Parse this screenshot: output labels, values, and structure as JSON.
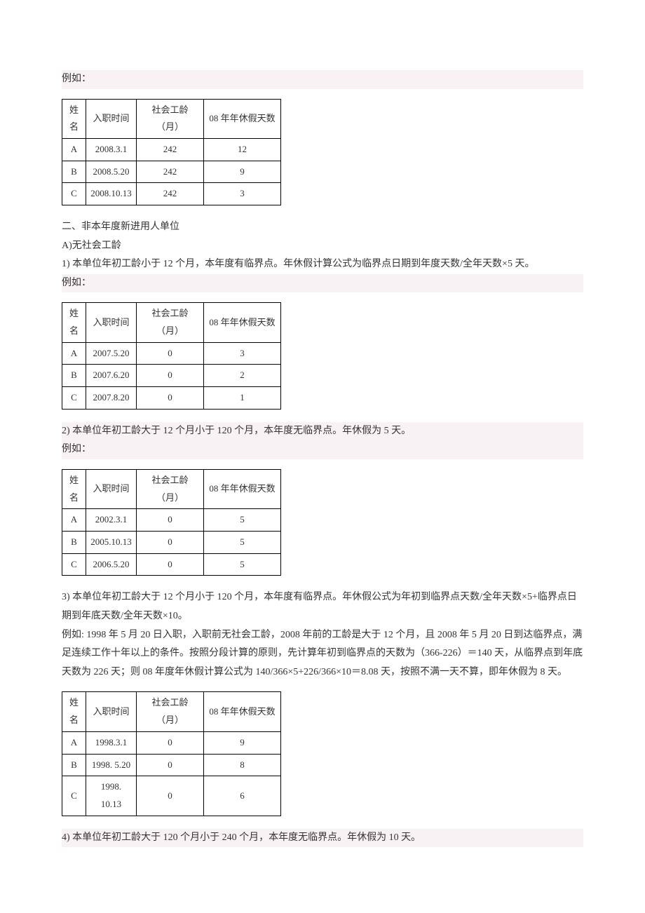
{
  "headers": [
    "姓名",
    "入职时间",
    "社会工龄（月）",
    "08 年年休假天数"
  ],
  "p_eg": "例如：",
  "table1": {
    "rows": [
      [
        "A",
        "2008.3.1",
        "242",
        "12"
      ],
      [
        "B",
        "2008.5.20",
        "242",
        "9"
      ],
      [
        "C",
        "2008.10.13",
        "242",
        "3"
      ]
    ]
  },
  "sec2": {
    "title": "二、非本年度新进用人单位",
    "subA": "A)无社会工龄",
    "p1": "1)  本单位年初工龄小于 12 个月，本年度有临界点。年休假计算公式为临界点日期到年度天数/全年天数×5 天。"
  },
  "table2": {
    "rows": [
      [
        "A",
        "2007.5.20",
        "0",
        "3"
      ],
      [
        "B",
        "2007.6.20",
        "0",
        "2"
      ],
      [
        "C",
        "2007.8.20",
        "0",
        "1"
      ]
    ]
  },
  "p2": "2)  本单位年初工龄大于 12 个月小于 120 个月，本年度无临界点。年休假为 5 天。",
  "table3": {
    "rows": [
      [
        "A",
        "2002.3.1",
        "0",
        "5"
      ],
      [
        "B",
        "2005.10.13",
        "0",
        "5"
      ],
      [
        "C",
        "2006.5.20",
        "0",
        "5"
      ]
    ]
  },
  "p3a": "3)  本单位年初工龄大于 12 个月小于 120 个月，本年度有临界点。年休假公式为年初到临界点天数/全年天数×5+临界点日期到年底天数/全年天数×10。",
  "p3b": "例如: 1998 年 5 月 20 日入职，入职前无社会工龄，2008 年前的工龄是大于 12 个月，且 2008 年 5 月 20 日到达临界点，满足连续工作十年以上的条件。按照分段计算的原则，先计算年初到临界点的天数为（366-226）＝140 天，从临界点到年底天数为 226 天；则 08 年度年休假计算公式为 140/366×5+226/366×10＝8.08 天，按照不满一天不算，即年休假为 8 天。",
  "table4": {
    "rows": [
      [
        "A",
        "1998.3.1",
        "0",
        "9"
      ],
      [
        "B",
        "1998. 5.20",
        "0",
        "8"
      ],
      [
        "C",
        "1998. 10.13",
        "0",
        "6"
      ]
    ]
  },
  "p4": "4)  本单位年初工龄大于 120 个月小于 240 个月，本年度无临界点。年休假为 10 天。"
}
